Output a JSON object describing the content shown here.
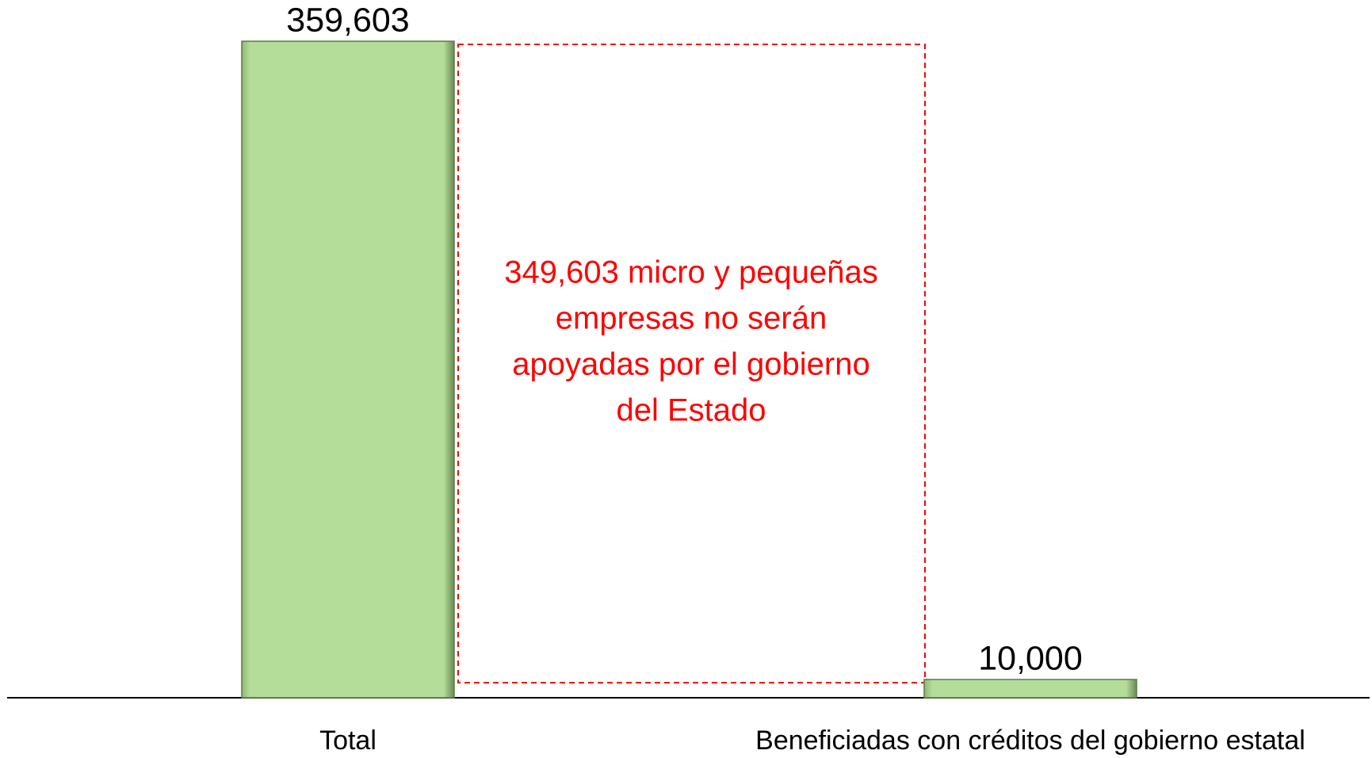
{
  "chart_data": {
    "type": "bar",
    "categories": [
      "Total",
      "Beneficiadas con créditos del gobierno estatal"
    ],
    "values": [
      359603,
      10000
    ],
    "value_labels": [
      "359,603",
      "10,000"
    ],
    "color": "#b5dd9a",
    "ylim": [
      0,
      359603
    ],
    "annotation": [
      "349,603 micro y pequeñas",
      "empresas no serán",
      "apoyadas por el gobierno",
      "del Estado"
    ],
    "annotation_color": "#ff0000"
  }
}
